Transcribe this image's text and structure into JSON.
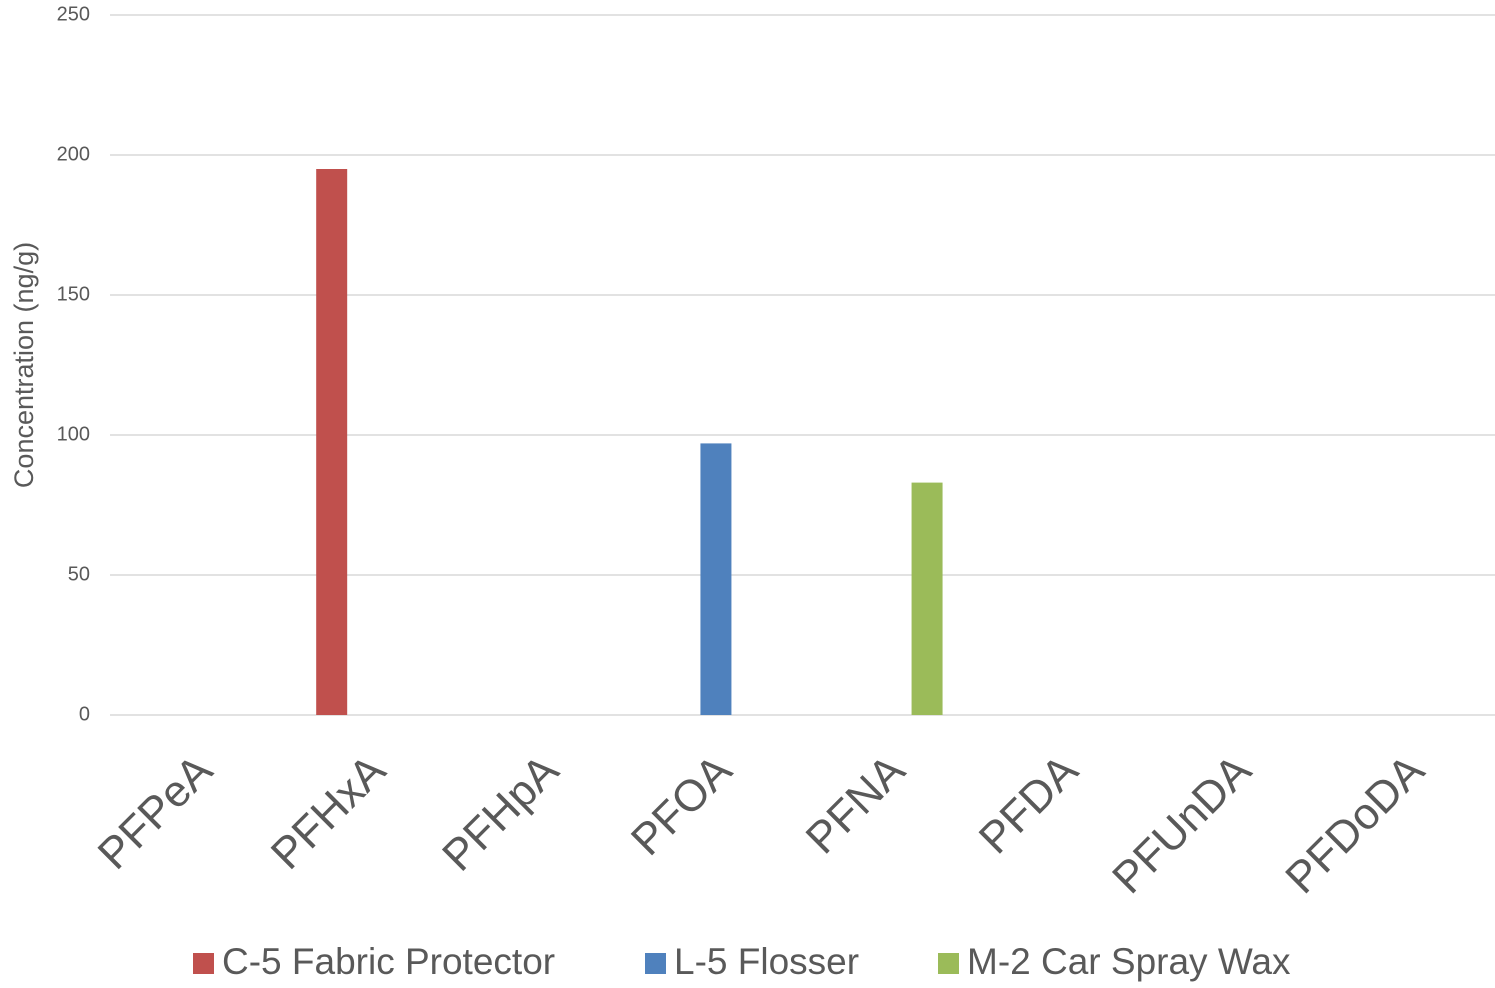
{
  "chart_data": {
    "type": "bar",
    "y_label": "Concentration (ng/g)",
    "categories": [
      "PFPeA",
      "PFHxA",
      "PFHpA",
      "PFOA",
      "PFNA",
      "PFDA",
      "PFUnDA",
      "PFDoDA"
    ],
    "series": [
      {
        "name": "C-5 Fabric Protector",
        "color": "#c0504d",
        "values": [
          null,
          195,
          null,
          null,
          null,
          null,
          null,
          null
        ]
      },
      {
        "name": "L-5 Flosser",
        "color": "#4f81bd",
        "values": [
          null,
          null,
          null,
          97,
          null,
          null,
          null,
          null
        ]
      },
      {
        "name": "M-2 Car Spray Wax",
        "color": "#9bbb59",
        "values": [
          null,
          null,
          null,
          null,
          83,
          null,
          null,
          null
        ]
      }
    ],
    "ylim": [
      0,
      250
    ],
    "yticks": [
      0,
      50,
      100,
      150,
      200,
      250
    ],
    "grid": true,
    "legend": "bottom"
  }
}
